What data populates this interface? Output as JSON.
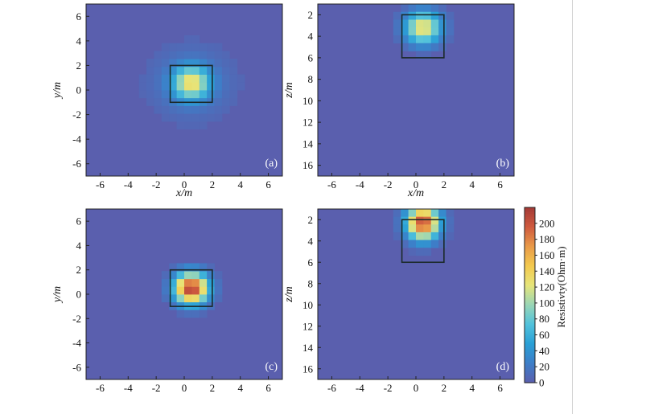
{
  "colors": {
    "background": "#5a5fae",
    "colormap": [
      "#5a5fae",
      "#3d7ec8",
      "#2aa0d6",
      "#52c2dc",
      "#9ad6b6",
      "#e7e57a",
      "#f3c94e",
      "#e99a49",
      "#cf5a3f",
      "#a33a36"
    ],
    "frame": "#222222",
    "anomaly_box": "#1c2a2a"
  },
  "chart_data": [
    {
      "type": "heatmap",
      "panel": "(a)",
      "xlabel": "x/m",
      "ylabel": "y/m",
      "xlim": [
        -7,
        7
      ],
      "ylim": [
        -7,
        7
      ],
      "x_ticks": [
        "-6",
        "-4",
        "-2",
        "0",
        "2",
        "4",
        "6"
      ],
      "y_ticks": [
        "6",
        "4",
        "2",
        "0",
        "-2",
        "-4",
        "-6"
      ],
      "y_inverted": false,
      "anomaly_box": {
        "x": [
          -1,
          2
        ],
        "y": [
          -1,
          2
        ]
      },
      "peak_center": [
        0.5,
        0.6
      ],
      "peak_resistivity": 120,
      "spread": [
        1.3,
        1.3
      ],
      "halo_radius": 3.6,
      "halo_resistivity": 16
    },
    {
      "type": "heatmap",
      "panel": "(b)",
      "xlabel": "x/m",
      "ylabel": "z/m",
      "xlim": [
        -7,
        7
      ],
      "ylim": [
        1,
        17
      ],
      "x_ticks": [
        "-6",
        "-4",
        "-2",
        "0",
        "2",
        "4",
        "6"
      ],
      "y_ticks": [
        "2",
        "4",
        "6",
        "8",
        "10",
        "12",
        "14",
        "16"
      ],
      "y_inverted": true,
      "anomaly_box": {
        "x": [
          -1,
          2
        ],
        "y": [
          2,
          6
        ]
      },
      "peak_center": [
        0.5,
        3.2
      ],
      "peak_resistivity": 130,
      "spread": [
        1.3,
        1.5
      ],
      "halo_radius": 0,
      "halo_resistivity": 0
    },
    {
      "type": "heatmap",
      "panel": "(c)",
      "xlabel": "",
      "ylabel": "y/m",
      "xlim": [
        -7,
        7
      ],
      "ylim": [
        -7,
        7
      ],
      "x_ticks": [
        "-6",
        "-4",
        "-2",
        "0",
        "2",
        "4",
        "6"
      ],
      "y_ticks": [
        "6",
        "4",
        "2",
        "0",
        "-2",
        "-4",
        "-6"
      ],
      "y_inverted": false,
      "anomaly_box": {
        "x": [
          -1,
          2
        ],
        "y": [
          -1,
          2
        ]
      },
      "peak_center": [
        0.5,
        0.5
      ],
      "peak_resistivity": 215,
      "spread": [
        1.2,
        1.25
      ],
      "halo_radius": 0,
      "halo_resistivity": 0
    },
    {
      "type": "heatmap",
      "panel": "(d)",
      "xlabel": "",
      "ylabel": "z/m",
      "xlim": [
        -7,
        7
      ],
      "ylim": [
        1,
        17
      ],
      "x_ticks": [
        "-6",
        "-4",
        "-2",
        "0",
        "2",
        "4",
        "6"
      ],
      "y_ticks": [
        "2",
        "4",
        "6",
        "8",
        "10",
        "12",
        "14",
        "16"
      ],
      "y_inverted": true,
      "anomaly_box": {
        "x": [
          -1,
          2
        ],
        "y": [
          2,
          6
        ]
      },
      "peak_center": [
        0.5,
        2.3
      ],
      "peak_resistivity": 205,
      "spread": [
        1.15,
        1.55
      ],
      "halo_radius": 0,
      "halo_resistivity": 0
    }
  ],
  "colorbar": {
    "label": "Resistivty(Ohm·m)",
    "min": 0,
    "max": 220,
    "ticks": [
      "200",
      "180",
      "160",
      "140",
      "120",
      "100",
      "80",
      "60",
      "40",
      "20",
      "0"
    ]
  }
}
